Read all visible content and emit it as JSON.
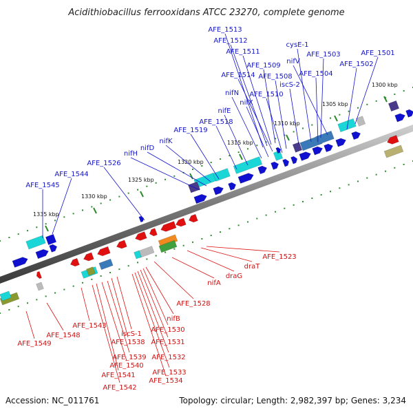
{
  "title": "Acidithiobacillus ferrooxidans ATCC 23270, complete genome",
  "footer": {
    "accession": "Accession: NC_011761",
    "summary": "Topology: circular; Length: 2,982,397 bp; Genes: 3,234"
  },
  "ticks": [
    "1300 kbp",
    "1305 kbp",
    "1310 kbp",
    "1315 kbp",
    "1320 kbp",
    "1325 kbp",
    "1330 kbp",
    "1335 kbp"
  ],
  "forward_labels": [
    "AFE_1513",
    "AFE_1512",
    "AFE_1511",
    "AFE_1509",
    "cysE-1",
    "AFE_1503",
    "AFE_1501",
    "AFE_1514",
    "AFE_1508",
    "nifV",
    "AFE_1502",
    "iscS-2",
    "AFE_1504",
    "AFE_1510",
    "nifN",
    "nifX",
    "nifE",
    "AFE_1518",
    "AFE_1519",
    "nifK",
    "nifD",
    "nifH",
    "AFE_1526",
    "AFE_1544",
    "AFE_1545"
  ],
  "reverse_labels": [
    "AFE_1523",
    "draT",
    "draG",
    "nifA",
    "AFE_1528",
    "nifB",
    "AFE_1530",
    "AFE_1531",
    "AFE_1532",
    "AFE_1533",
    "AFE_1534",
    "iscS-1",
    "AFE_1538",
    "AFE_1539",
    "AFE_1540",
    "AFE_1541",
    "AFE_1542",
    "AFE_1543",
    "AFE_1548",
    "AFE_1549"
  ],
  "colors": {
    "forward": "#1010d0",
    "reverse": "#e01010",
    "backbone": "#7a7a7a",
    "tick": "#2d8a2d",
    "cyan": "#1ad6d6",
    "steel": "#3a7ab8",
    "purple": "#4a3a8a",
    "olive": "#8a9a30",
    "khaki": "#b8b070",
    "gray": "#bbbbbb",
    "orange": "#f08a20",
    "green": "#40a040"
  }
}
